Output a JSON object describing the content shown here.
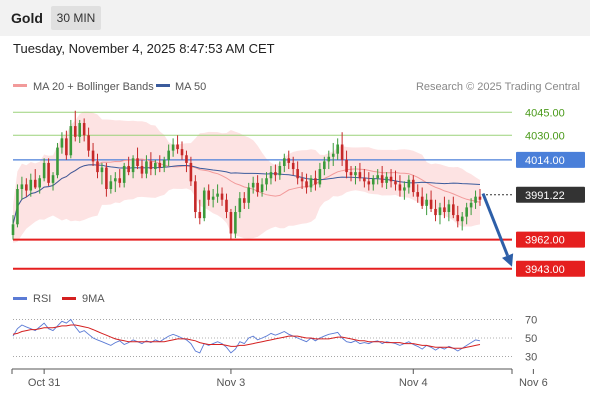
{
  "header": {
    "instrument": "Gold",
    "timeframe": "30 MIN",
    "datetime": "Tuesday, November 4, 2025 8:47:53 AM CET"
  },
  "legend": {
    "ma20_label": "MA 20 + Bollinger Bands",
    "ma50_label": "MA 50",
    "rsi_label": "RSI",
    "rsi_ma_label": "9MA",
    "credit": "Research © 2025 Trading Central"
  },
  "colors": {
    "bull": "#3a9a3a",
    "bear": "#c62828",
    "bollinger_fill": "#fde3e3",
    "ma20": "#f29a9a",
    "ma50": "#3b5b9c",
    "resistance_green": "#9bd27a",
    "green_text": "#4a9a1a",
    "support_red": "#e51f1f",
    "pivot_blue": "#4a7fd9",
    "price_box": "#333333",
    "arrow": "#2d5fa8",
    "rsi_line": "#5b7bd5",
    "rsi_ma": "#d42020"
  },
  "chart_data": [
    {
      "type": "candlestick",
      "title": "Gold",
      "timeframe": "30 MIN",
      "ylim": [
        3937,
        4053
      ],
      "x_tick_labels": [
        "Oct 31",
        "Nov 3",
        "Nov 4",
        "Nov 6"
      ],
      "x_tick_positions": [
        7,
        49,
        90,
        117
      ],
      "levels": [
        {
          "label": "4045.00",
          "value": 4045.0,
          "kind": "resistance"
        },
        {
          "label": "4030.00",
          "value": 4030.0,
          "kind": "resistance"
        },
        {
          "label": "4014.00",
          "value": 4014.0,
          "kind": "pivot"
        },
        {
          "label": "3962.00",
          "value": 3962.0,
          "kind": "support"
        },
        {
          "label": "3943.00",
          "value": 3943.0,
          "kind": "support"
        }
      ],
      "last_price": {
        "label": "3991.22",
        "value": 3991.22
      },
      "forecast_arrow": {
        "from": 3992,
        "to": 3943
      },
      "candles": [
        [
          3965,
          3978,
          3962,
          3972
        ],
        [
          3972,
          3998,
          3970,
          3995
        ],
        [
          3995,
          4003,
          3988,
          3998
        ],
        [
          3998,
          4002,
          3990,
          3994
        ],
        [
          3994,
          4005,
          3990,
          4001
        ],
        [
          4001,
          4008,
          3995,
          3996
        ],
        [
          3996,
          4004,
          3992,
          4002
        ],
        [
          4002,
          4015,
          4000,
          4012
        ],
        [
          4012,
          4015,
          3997,
          3999
        ],
        [
          3999,
          4006,
          3994,
          4004
        ],
        [
          4004,
          4025,
          4002,
          4022
        ],
        [
          4022,
          4032,
          4018,
          4028
        ],
        [
          4028,
          4033,
          4014,
          4017
        ],
        [
          4017,
          4040,
          4015,
          4036
        ],
        [
          4036,
          4046,
          4026,
          4029
        ],
        [
          4029,
          4040,
          4025,
          4038
        ],
        [
          4038,
          4041,
          4026,
          4030
        ],
        [
          4030,
          4035,
          4016,
          4020
        ],
        [
          4020,
          4025,
          4010,
          4013
        ],
        [
          4013,
          4018,
          4002,
          4006
        ],
        [
          4006,
          4012,
          3998,
          4009
        ],
        [
          4009,
          4012,
          3990,
          3995
        ],
        [
          3995,
          4004,
          3992,
          4000
        ],
        [
          4000,
          4006,
          3993,
          4002
        ],
        [
          4002,
          4008,
          3996,
          3999
        ],
        [
          3999,
          4012,
          3996,
          4010
        ],
        [
          4010,
          4016,
          4004,
          4006
        ],
        [
          4006,
          4017,
          4002,
          4015
        ],
        [
          4015,
          4022,
          4008,
          4010
        ],
        [
          4010,
          4014,
          4002,
          4005
        ],
        [
          4005,
          4017,
          4002,
          4013
        ],
        [
          4013,
          4019,
          4004,
          4008
        ],
        [
          4008,
          4014,
          4004,
          4012
        ],
        [
          4012,
          4017,
          4006,
          4009
        ],
        [
          4009,
          4016,
          4006,
          4014
        ],
        [
          4014,
          4024,
          4010,
          4020
        ],
        [
          4020,
          4028,
          4016,
          4024
        ],
        [
          4024,
          4030,
          4018,
          4021
        ],
        [
          4021,
          4026,
          4014,
          4017
        ],
        [
          4017,
          4020,
          4006,
          4012
        ],
        [
          4012,
          4016,
          3997,
          4000
        ],
        [
          4000,
          4004,
          3976,
          3980
        ],
        [
          3980,
          3988,
          3972,
          3976
        ],
        [
          3976,
          3996,
          3974,
          3994
        ],
        [
          3994,
          3998,
          3984,
          3988
        ],
        [
          3988,
          3995,
          3983,
          3990
        ],
        [
          3990,
          3998,
          3986,
          3992
        ],
        [
          3992,
          3996,
          3984,
          3988
        ],
        [
          3988,
          3992,
          3976,
          3980
        ],
        [
          3980,
          3982,
          3962,
          3966
        ],
        [
          3966,
          3984,
          3963,
          3980
        ],
        [
          3980,
          3993,
          3976,
          3989
        ],
        [
          3989,
          3993,
          3982,
          3986
        ],
        [
          3986,
          3999,
          3982,
          3996
        ],
        [
          3996,
          4003,
          3992,
          3999
        ],
        [
          3999,
          4004,
          3990,
          3993
        ],
        [
          3993,
          4002,
          3990,
          3998
        ],
        [
          3998,
          4006,
          3994,
          4002
        ],
        [
          4002,
          4010,
          3998,
          4006
        ],
        [
          4006,
          4011,
          4000,
          4004
        ],
        [
          4004,
          4013,
          4001,
          4010
        ],
        [
          4010,
          4018,
          4006,
          4015
        ],
        [
          4015,
          4020,
          4008,
          4012
        ],
        [
          4012,
          4016,
          4004,
          4008
        ],
        [
          4008,
          4013,
          3998,
          4002
        ],
        [
          4002,
          4006,
          3995,
          4000
        ],
        [
          4000,
          4005,
          3992,
          3996
        ],
        [
          3996,
          4004,
          3993,
          4002
        ],
        [
          4002,
          4007,
          3994,
          3998
        ],
        [
          3998,
          4012,
          3996,
          4008
        ],
        [
          4008,
          4016,
          4004,
          4013
        ],
        [
          4013,
          4020,
          4008,
          4016
        ],
        [
          4016,
          4025,
          4010,
          4018
        ],
        [
          4018,
          4028,
          4014,
          4024
        ],
        [
          4024,
          4032,
          4010,
          4014
        ],
        [
          4014,
          4020,
          4002,
          4006
        ],
        [
          4006,
          4010,
          4000,
          4004
        ],
        [
          4004,
          4010,
          3998,
          4006
        ],
        [
          4006,
          4012,
          4000,
          4002
        ],
        [
          4002,
          4008,
          3996,
          4000
        ],
        [
          4000,
          4006,
          3994,
          3998
        ],
        [
          3998,
          4004,
          3994,
          4002
        ],
        [
          4002,
          4008,
          3998,
          4004
        ],
        [
          4004,
          4010,
          3996,
          3999
        ],
        [
          3999,
          4006,
          3995,
          4003
        ],
        [
          4003,
          4008,
          3996,
          4000
        ],
        [
          4000,
          4007,
          3994,
          3998
        ],
        [
          3998,
          4004,
          3990,
          3994
        ],
        [
          3994,
          4000,
          3988,
          3996
        ],
        [
          3996,
          4004,
          3992,
          4001
        ],
        [
          4001,
          4004,
          3990,
          3993
        ],
        [
          3993,
          3998,
          3986,
          3990
        ],
        [
          3990,
          3996,
          3982,
          3984
        ],
        [
          3984,
          3992,
          3978,
          3988
        ],
        [
          3988,
          3994,
          3980,
          3982
        ],
        [
          3982,
          3988,
          3974,
          3978
        ],
        [
          3978,
          3986,
          3972,
          3983
        ],
        [
          3983,
          3990,
          3976,
          3980
        ],
        [
          3980,
          3988,
          3974,
          3985
        ],
        [
          3985,
          3990,
          3976,
          3978
        ],
        [
          3978,
          3984,
          3970,
          3974
        ],
        [
          3974,
          3980,
          3968,
          3977
        ],
        [
          3977,
          3986,
          3972,
          3983
        ],
        [
          3983,
          3989,
          3978,
          3986
        ],
        [
          3986,
          3994,
          3982,
          3990
        ],
        [
          3990,
          3995,
          3984,
          3988
        ]
      ]
    },
    {
      "type": "line",
      "title": "RSI",
      "ylim": [
        22,
        78
      ],
      "y_ticks": [
        70,
        50,
        30
      ],
      "series": [
        {
          "name": "RSI",
          "values": [
            52,
            60,
            64,
            62,
            60,
            58,
            62,
            66,
            60,
            58,
            63,
            68,
            66,
            70,
            62,
            56,
            58,
            54,
            50,
            48,
            46,
            44,
            42,
            45,
            47,
            43,
            45,
            48,
            46,
            44,
            47,
            45,
            48,
            46,
            49,
            52,
            54,
            52,
            50,
            48,
            44,
            36,
            34,
            44,
            42,
            44,
            46,
            44,
            40,
            34,
            38,
            46,
            44,
            50,
            52,
            48,
            50,
            52,
            55,
            53,
            55,
            57,
            54,
            52,
            50,
            48,
            46,
            50,
            47,
            50,
            52,
            54,
            55,
            56,
            50,
            46,
            45,
            47,
            44,
            45,
            44,
            46,
            47,
            44,
            46,
            45,
            44,
            42,
            44,
            46,
            43,
            41,
            38,
            42,
            40,
            37,
            40,
            38,
            41,
            39,
            36,
            39,
            42,
            45,
            48,
            47
          ]
        },
        {
          "name": "9MA",
          "values": [
            54,
            55,
            57,
            58,
            59,
            59,
            60,
            61,
            61,
            61,
            62,
            63,
            63,
            64,
            64,
            63,
            62,
            61,
            59,
            57,
            55,
            53,
            51,
            49,
            48,
            47,
            46,
            46,
            46,
            46,
            46,
            46,
            46,
            46,
            46,
            47,
            48,
            49,
            49,
            49,
            48,
            47,
            45,
            44,
            43,
            43,
            43,
            43,
            42,
            41,
            41,
            42,
            42,
            43,
            44,
            45,
            46,
            47,
            48,
            49,
            50,
            51,
            52,
            52,
            52,
            51,
            50,
            50,
            49,
            49,
            49,
            49,
            50,
            51,
            51,
            50,
            49,
            48,
            47,
            47,
            46,
            46,
            46,
            46,
            45,
            45,
            45,
            45,
            44,
            44,
            44,
            43,
            42,
            42,
            41,
            40,
            40,
            40,
            40,
            39,
            39,
            39,
            40,
            41,
            42,
            43
          ]
        }
      ]
    }
  ]
}
